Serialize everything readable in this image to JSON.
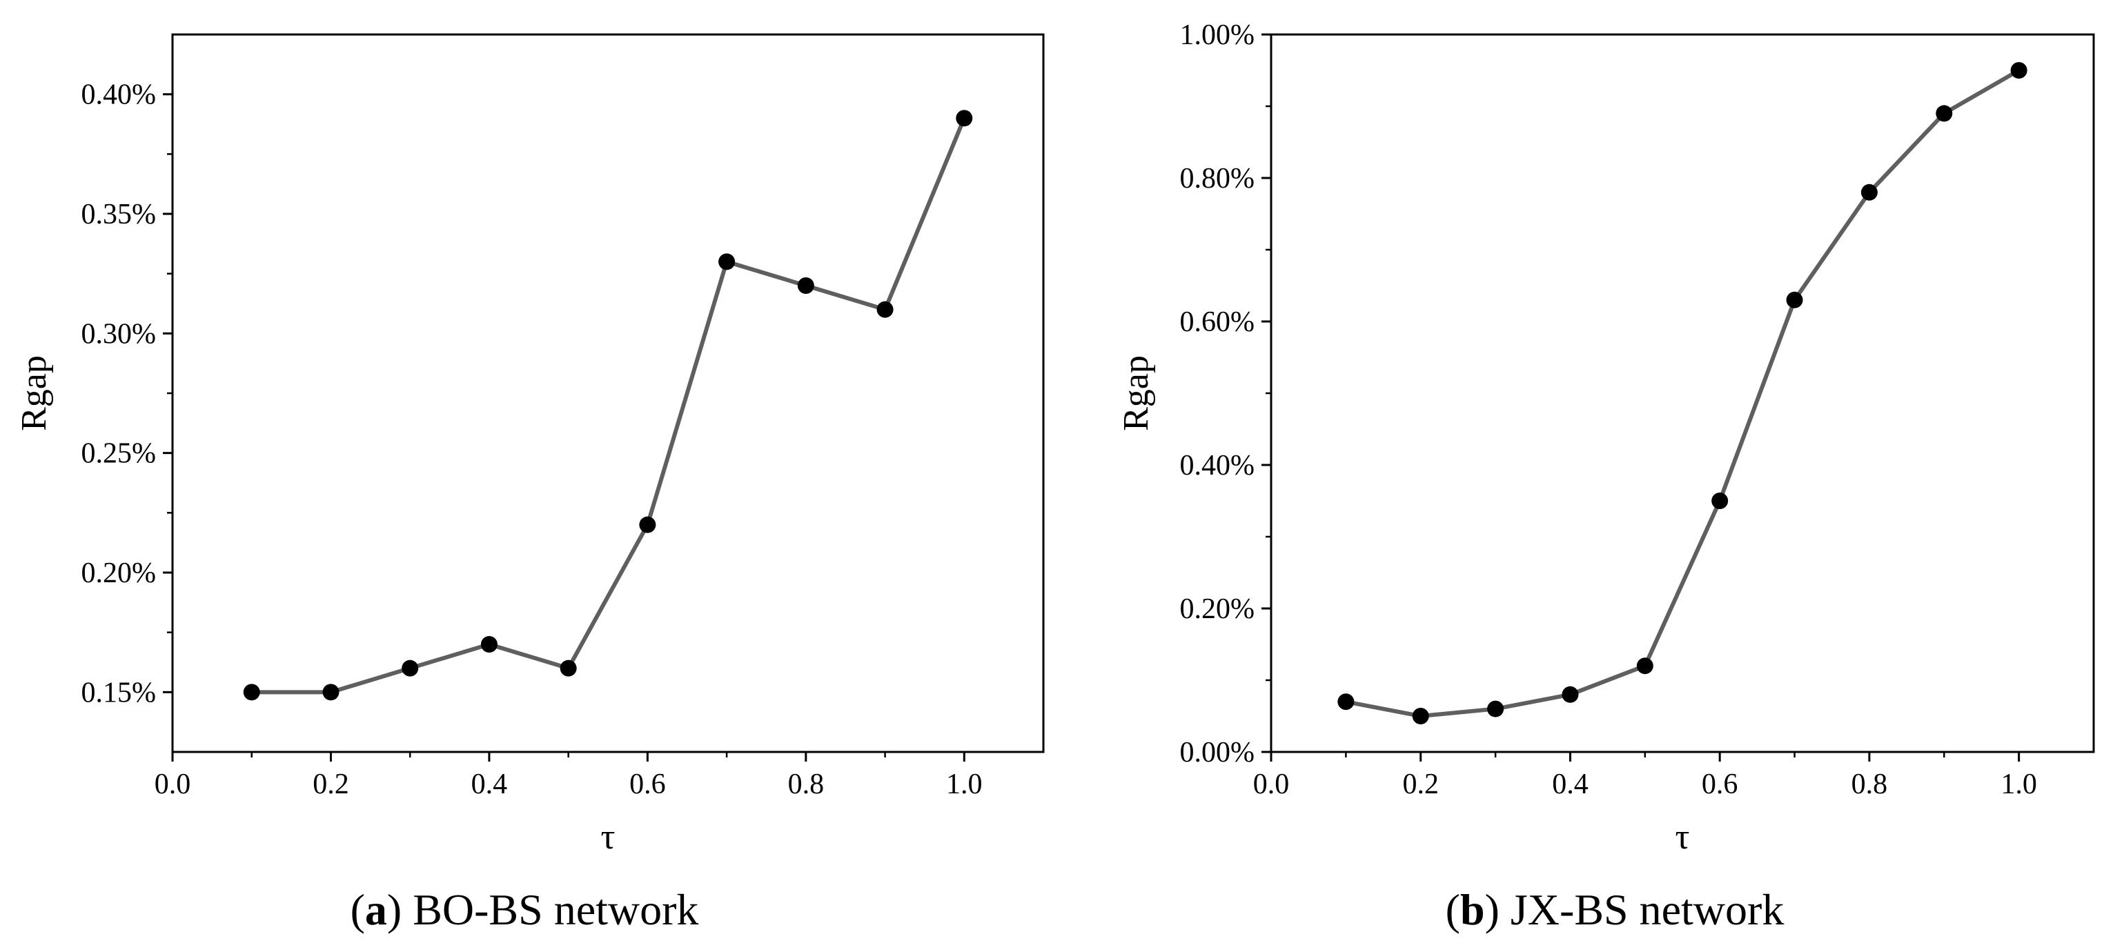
{
  "chart_data": [
    {
      "type": "line",
      "caption": {
        "open": "(",
        "letter": "a",
        "close": ")",
        "text": " BO-BS network"
      },
      "xlabel": "τ",
      "ylabel": "Rgap",
      "xlim": [
        0.0,
        1.1
      ],
      "ylim": [
        0.125,
        0.425
      ],
      "xticks": [
        0.0,
        0.2,
        0.4,
        0.6,
        0.8,
        1.0
      ],
      "xtick_labels": [
        "0.0",
        "0.2",
        "0.4",
        "0.6",
        "0.8",
        "1.0"
      ],
      "yticks": [
        0.15,
        0.2,
        0.25,
        0.3,
        0.35,
        0.4
      ],
      "ytick_labels": [
        "0.15%",
        "0.20%",
        "0.25%",
        "0.30%",
        "0.35%",
        "0.40%"
      ],
      "grid": false,
      "series": [
        {
          "x": [
            0.1,
            0.2,
            0.3,
            0.4,
            0.5,
            0.6,
            0.7,
            0.8,
            0.9,
            1.0
          ],
          "y": [
            0.15,
            0.15,
            0.16,
            0.17,
            0.16,
            0.22,
            0.33,
            0.32,
            0.31,
            0.39
          ],
          "line_color": "#5f5f5f",
          "marker_color": "#000000"
        }
      ]
    },
    {
      "type": "line",
      "caption": {
        "open": "(",
        "letter": "b",
        "close": ")",
        "text": " JX-BS network"
      },
      "xlabel": "τ",
      "ylabel": "Rgap",
      "xlim": [
        0.0,
        1.1
      ],
      "ylim": [
        0.0,
        1.0
      ],
      "xticks": [
        0.0,
        0.2,
        0.4,
        0.6,
        0.8,
        1.0
      ],
      "xtick_labels": [
        "0.0",
        "0.2",
        "0.4",
        "0.6",
        "0.8",
        "1.0"
      ],
      "yticks": [
        0.0,
        0.2,
        0.4,
        0.6,
        0.8,
        1.0
      ],
      "ytick_labels": [
        "0.00%",
        "0.20%",
        "0.40%",
        "0.60%",
        "0.80%",
        "1.00%"
      ],
      "grid": false,
      "series": [
        {
          "x": [
            0.1,
            0.2,
            0.3,
            0.4,
            0.5,
            0.6,
            0.7,
            0.8,
            0.9,
            1.0
          ],
          "y": [
            0.07,
            0.05,
            0.06,
            0.08,
            0.12,
            0.35,
            0.63,
            0.78,
            0.89,
            0.95
          ],
          "line_color": "#5f5f5f",
          "marker_color": "#000000"
        }
      ]
    }
  ]
}
